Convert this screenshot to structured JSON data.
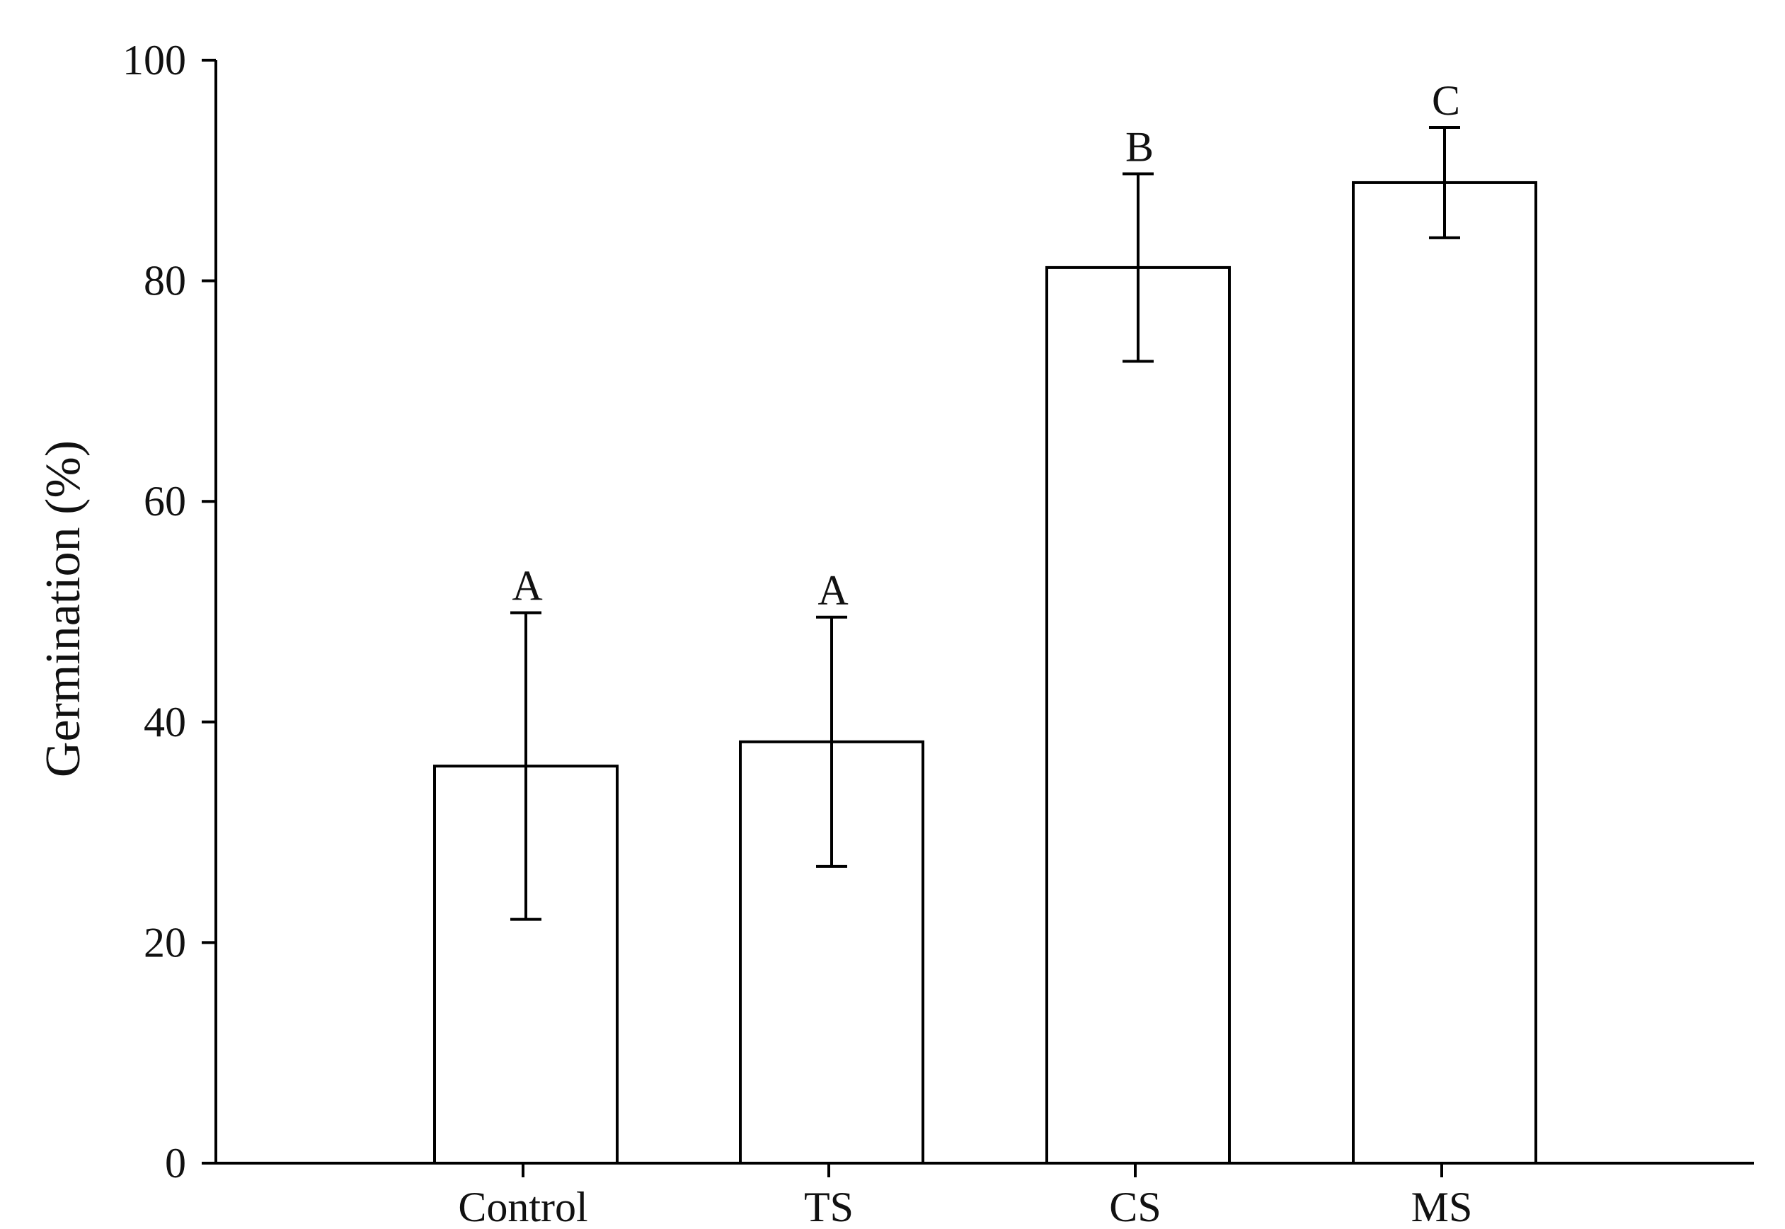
{
  "chart_data": {
    "type": "bar",
    "ylabel": "Germination (%)",
    "xlabel": "",
    "ylim": [
      0,
      100
    ],
    "yticks": [
      0,
      20,
      40,
      60,
      80,
      100
    ],
    "categories": [
      "Control",
      "TS",
      "CS",
      "MS"
    ],
    "values": [
      36,
      38.2,
      81.2,
      88.9
    ],
    "error": [
      13.9,
      11.3,
      8.5,
      5.0
    ],
    "significance": [
      "A",
      "A",
      "B",
      "C"
    ],
    "grid": false,
    "legend": "none"
  }
}
